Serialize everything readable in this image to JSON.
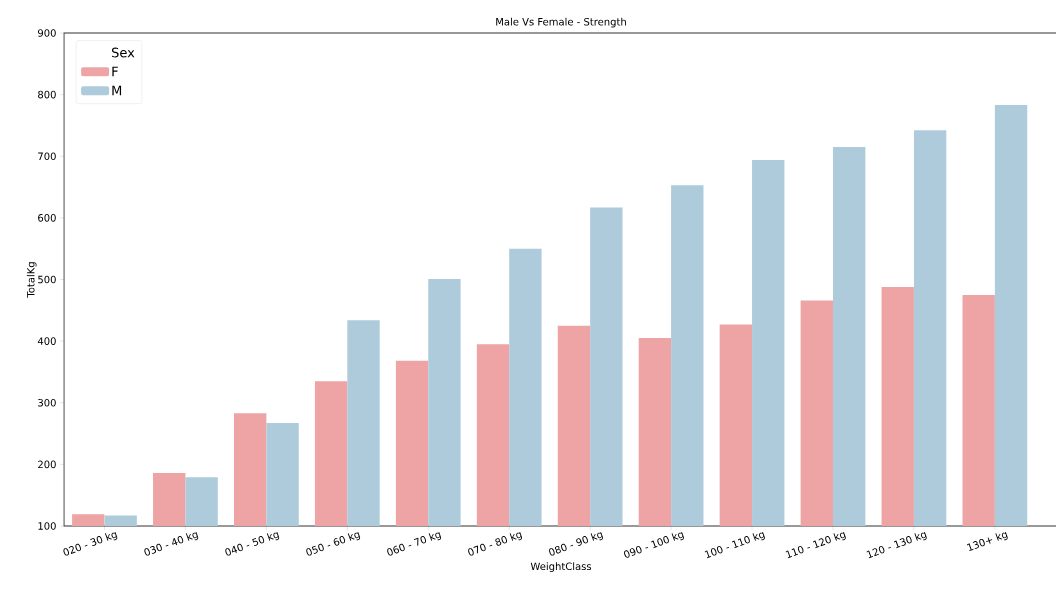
{
  "chart_data": {
    "type": "bar",
    "title": "Male Vs Female - Strength",
    "xlabel": "WeightClass",
    "ylabel": "TotalKg",
    "legend_title": "Sex",
    "categories": [
      "020 - 30 kg",
      "030 - 40 kg",
      "040 - 50 kg",
      "050 - 60 kg",
      "060 - 70 kg",
      "070 - 80 kg",
      "080 - 90 kg",
      "090 - 100 kg",
      "100 - 110 kg",
      "110 - 120 kg",
      "120 - 130 kg",
      "130+ kg"
    ],
    "series": [
      {
        "name": "F",
        "color": "#eea4a5",
        "values": [
          119,
          186,
          283,
          335,
          368,
          395,
          425,
          405,
          427,
          466,
          488,
          475
        ]
      },
      {
        "name": "M",
        "color": "#aecbdc",
        "values": [
          117,
          179,
          267,
          434,
          501,
          550,
          617,
          653,
          694,
          715,
          742,
          783
        ]
      }
    ],
    "ylim": [
      100,
      900
    ],
    "yticks": [
      100,
      200,
      300,
      400,
      500,
      600,
      700,
      800,
      900
    ],
    "legend": "top left",
    "grid": false
  }
}
